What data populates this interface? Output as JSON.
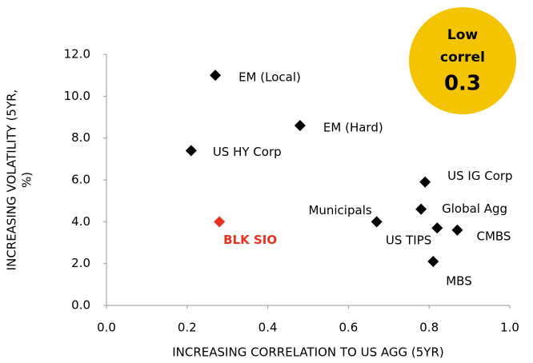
{
  "chart_data": {
    "type": "scatter",
    "xlabel": "INCREASING CORRELATION TO US AGG (5YR)",
    "ylabel": [
      "INCREASING VOLATILITY (5YR,",
      "%)"
    ],
    "xlim": [
      0,
      1
    ],
    "ylim": [
      0,
      12
    ],
    "xticks": [
      {
        "value": 0,
        "label": "0.0"
      },
      0.2,
      0.4,
      0.6,
      0.8,
      {
        "value": 1,
        "label": "1.0"
      }
    ],
    "yticks": [
      {
        "value": 0,
        "label": "0.0"
      },
      {
        "value": 2,
        "label": "2.0"
      },
      {
        "value": 4,
        "label": "4.0"
      },
      {
        "value": 6,
        "label": "6.0"
      },
      {
        "value": 8,
        "label": "8.0"
      },
      {
        "value": 10,
        "label": "10.0"
      },
      {
        "value": 12,
        "label": "12.0"
      }
    ],
    "points": [
      {
        "name": "EM (Local)",
        "x": 0.27,
        "y": 11.0,
        "color": "#000000"
      },
      {
        "name": "EM (Hard)",
        "x": 0.48,
        "y": 8.6,
        "color": "#000000"
      },
      {
        "name": "US HY Corp",
        "x": 0.21,
        "y": 7.4,
        "color": "#000000"
      },
      {
        "name": "BLK SIO",
        "x": 0.28,
        "y": 4.0,
        "color": "#e8321f"
      },
      {
        "name": "Municipals",
        "x": 0.67,
        "y": 4.0,
        "color": "#000000"
      },
      {
        "name": "US IG Corp",
        "x": 0.79,
        "y": 5.9,
        "color": "#000000"
      },
      {
        "name": "Global Agg",
        "x": 0.78,
        "y": 4.6,
        "color": "#000000"
      },
      {
        "name": "US TIPS",
        "x": 0.82,
        "y": 3.7,
        "color": "#000000"
      },
      {
        "name": "CMBS",
        "x": 0.87,
        "y": 3.6,
        "color": "#000000"
      },
      {
        "name": "MBS",
        "x": 0.81,
        "y": 2.1,
        "color": "#000000"
      }
    ],
    "annotation": {
      "lines": [
        "Low",
        "correl",
        "0.3"
      ],
      "color": "#f5c400"
    }
  }
}
